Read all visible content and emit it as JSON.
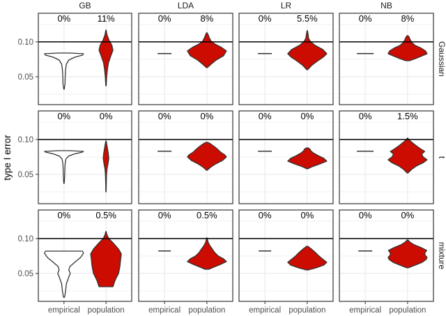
{
  "chart_data": {
    "type": "violin",
    "title": "",
    "ylabel": "type I error",
    "xlabel": "",
    "reference_line": 0.1,
    "ylim": [
      0.01,
      0.141
    ],
    "y_ticks": [
      0.05,
      0.1
    ],
    "y_tick_labels": [
      "0.05",
      "0.10"
    ],
    "minor_gridlines": [
      0.025,
      0.075,
      0.125
    ],
    "grid": true,
    "legend": "none",
    "columns": [
      "GB",
      "LDA",
      "LR",
      "NB"
    ],
    "rows": [
      "Gaussian",
      "t",
      "mixture"
    ],
    "x_categories": [
      "empirical",
      "population"
    ],
    "fill_colors": {
      "empirical": "#ffffff",
      "population": "#cc0c00"
    },
    "outline_color": "#333333",
    "panels": [
      {
        "column": "GB",
        "row": "Gaussian",
        "pct_labels": [
          "0%",
          "11%"
        ],
        "empirical": {
          "min": 0.032,
          "max": 0.084,
          "profile": [
            [
              0.032,
              0.01
            ],
            [
              0.04,
              0.05
            ],
            [
              0.05,
              0.06
            ],
            [
              0.06,
              0.08
            ],
            [
              0.068,
              0.12
            ],
            [
              0.074,
              0.25
            ],
            [
              0.078,
              0.55
            ],
            [
              0.081,
              0.95
            ],
            [
              0.083,
              1.0
            ],
            [
              0.084,
              0.3
            ]
          ]
        },
        "population": {
          "min": 0.037,
          "max": 0.117,
          "profile": [
            [
              0.037,
              0.03
            ],
            [
              0.05,
              0.1
            ],
            [
              0.06,
              0.2
            ],
            [
              0.07,
              0.35
            ],
            [
              0.08,
              0.7
            ],
            [
              0.088,
              1.0
            ],
            [
              0.095,
              0.85
            ],
            [
              0.102,
              0.45
            ],
            [
              0.11,
              0.15
            ],
            [
              0.117,
              0.02
            ]
          ]
        }
      },
      {
        "column": "LDA",
        "row": "Gaussian",
        "pct_labels": [
          "0%",
          "8%"
        ],
        "empirical": {
          "min": 0.0828,
          "max": 0.0836,
          "profile": [
            [
              0.0828,
              1.0
            ],
            [
              0.0836,
              1.0
            ]
          ]
        },
        "population": {
          "min": 0.063,
          "max": 0.113,
          "profile": [
            [
              0.063,
              0.02
            ],
            [
              0.068,
              0.22
            ],
            [
              0.074,
              0.48
            ],
            [
              0.08,
              0.85
            ],
            [
              0.087,
              1.0
            ],
            [
              0.092,
              0.75
            ],
            [
              0.097,
              0.4
            ],
            [
              0.101,
              0.22
            ],
            [
              0.106,
              0.12
            ],
            [
              0.11,
              0.07
            ],
            [
              0.113,
              0.02
            ]
          ]
        }
      },
      {
        "column": "LR",
        "row": "Gaussian",
        "pct_labels": [
          "0%",
          "5.5%"
        ],
        "empirical": {
          "min": 0.0828,
          "max": 0.0836,
          "profile": [
            [
              0.0828,
              1.0
            ],
            [
              0.0836,
              1.0
            ]
          ]
        },
        "population": {
          "min": 0.06,
          "max": 0.116,
          "profile": [
            [
              0.06,
              0.02
            ],
            [
              0.066,
              0.22
            ],
            [
              0.072,
              0.5
            ],
            [
              0.078,
              0.82
            ],
            [
              0.083,
              1.0
            ],
            [
              0.089,
              0.8
            ],
            [
              0.095,
              0.4
            ],
            [
              0.1,
              0.18
            ],
            [
              0.105,
              0.07
            ],
            [
              0.11,
              0.05
            ],
            [
              0.116,
              0.01
            ]
          ]
        }
      },
      {
        "column": "NB",
        "row": "Gaussian",
        "pct_labels": [
          "0%",
          "8%"
        ],
        "empirical": {
          "min": 0.0828,
          "max": 0.0836,
          "profile": [
            [
              0.0828,
              1.0
            ],
            [
              0.0836,
              1.0
            ]
          ]
        },
        "population": {
          "min": 0.073,
          "max": 0.109,
          "profile": [
            [
              0.073,
              0.1
            ],
            [
              0.076,
              0.4
            ],
            [
              0.08,
              0.75
            ],
            [
              0.083,
              1.0
            ],
            [
              0.087,
              0.92
            ],
            [
              0.091,
              0.7
            ],
            [
              0.095,
              0.38
            ],
            [
              0.099,
              0.22
            ],
            [
              0.104,
              0.12
            ],
            [
              0.107,
              0.08
            ],
            [
              0.109,
              0.02
            ]
          ]
        }
      },
      {
        "column": "GB",
        "row": "t",
        "pct_labels": [
          "0%",
          "0%"
        ],
        "empirical": {
          "min": 0.037,
          "max": 0.084,
          "profile": [
            [
              0.037,
              0.01
            ],
            [
              0.045,
              0.03
            ],
            [
              0.055,
              0.04
            ],
            [
              0.063,
              0.05
            ],
            [
              0.068,
              0.07
            ],
            [
              0.072,
              0.1
            ],
            [
              0.076,
              0.22
            ],
            [
              0.079,
              0.5
            ],
            [
              0.082,
              0.95
            ],
            [
              0.083,
              1.0
            ],
            [
              0.084,
              0.3
            ]
          ]
        },
        "population": {
          "min": 0.025,
          "max": 0.098,
          "profile": [
            [
              0.025,
              0.02
            ],
            [
              0.04,
              0.05
            ],
            [
              0.05,
              0.08
            ],
            [
              0.058,
              0.15
            ],
            [
              0.066,
              0.3
            ],
            [
              0.073,
              0.4
            ],
            [
              0.08,
              0.33
            ],
            [
              0.088,
              0.2
            ],
            [
              0.094,
              0.1
            ],
            [
              0.098,
              0.02
            ]
          ]
        }
      },
      {
        "column": "LDA",
        "row": "t",
        "pct_labels": [
          "0%",
          "0%"
        ],
        "empirical": {
          "min": 0.0828,
          "max": 0.0836,
          "profile": [
            [
              0.0828,
              1.0
            ],
            [
              0.0836,
              1.0
            ]
          ]
        },
        "population": {
          "min": 0.056,
          "max": 0.096,
          "profile": [
            [
              0.056,
              0.02
            ],
            [
              0.06,
              0.18
            ],
            [
              0.065,
              0.45
            ],
            [
              0.07,
              0.8
            ],
            [
              0.075,
              1.0
            ],
            [
              0.078,
              0.92
            ],
            [
              0.082,
              0.7
            ],
            [
              0.086,
              0.55
            ],
            [
              0.09,
              0.38
            ],
            [
              0.094,
              0.18
            ],
            [
              0.096,
              0.03
            ]
          ]
        }
      },
      {
        "column": "LR",
        "row": "t",
        "pct_labels": [
          "0%",
          "0%"
        ],
        "empirical": {
          "min": 0.0828,
          "max": 0.0836,
          "profile": [
            [
              0.0828,
              1.0
            ],
            [
              0.0836,
              1.0
            ]
          ]
        },
        "population": {
          "min": 0.058,
          "max": 0.088,
          "profile": [
            [
              0.058,
              0.02
            ],
            [
              0.061,
              0.25
            ],
            [
              0.065,
              0.65
            ],
            [
              0.069,
              1.0
            ],
            [
              0.073,
              0.85
            ],
            [
              0.077,
              0.55
            ],
            [
              0.081,
              0.3
            ],
            [
              0.084,
              0.18
            ],
            [
              0.086,
              0.15
            ],
            [
              0.088,
              0.05
            ]
          ]
        }
      },
      {
        "column": "NB",
        "row": "t",
        "pct_labels": [
          "0%",
          "1.5%"
        ],
        "empirical": {
          "min": 0.0828,
          "max": 0.0836,
          "profile": [
            [
              0.0828,
              1.0
            ],
            [
              0.0836,
              1.0
            ]
          ]
        },
        "population": {
          "min": 0.052,
          "max": 0.102,
          "profile": [
            [
              0.052,
              0.02
            ],
            [
              0.057,
              0.2
            ],
            [
              0.062,
              0.45
            ],
            [
              0.067,
              0.82
            ],
            [
              0.071,
              1.0
            ],
            [
              0.075,
              0.8
            ],
            [
              0.079,
              0.72
            ],
            [
              0.083,
              0.88
            ],
            [
              0.087,
              0.65
            ],
            [
              0.092,
              0.4
            ],
            [
              0.097,
              0.18
            ],
            [
              0.1,
              0.05
            ],
            [
              0.102,
              0.02
            ]
          ]
        }
      },
      {
        "column": "GB",
        "row": "mixture",
        "pct_labels": [
          "0%",
          "0.5%"
        ],
        "empirical": {
          "min": 0.016,
          "max": 0.082,
          "profile": [
            [
              0.016,
              0.03
            ],
            [
              0.025,
              0.08
            ],
            [
              0.035,
              0.12
            ],
            [
              0.043,
              0.22
            ],
            [
              0.05,
              0.32
            ],
            [
              0.055,
              0.25
            ],
            [
              0.06,
              0.3
            ],
            [
              0.066,
              0.55
            ],
            [
              0.073,
              0.85
            ],
            [
              0.079,
              1.0
            ],
            [
              0.082,
              0.95
            ]
          ]
        },
        "population": {
          "min": 0.031,
          "max": 0.11,
          "profile": [
            [
              0.031,
              0.5
            ],
            [
              0.034,
              0.55
            ],
            [
              0.04,
              0.65
            ],
            [
              0.05,
              0.9
            ],
            [
              0.06,
              1.0
            ],
            [
              0.07,
              1.05
            ],
            [
              0.078,
              1.1
            ],
            [
              0.085,
              0.9
            ],
            [
              0.093,
              0.55
            ],
            [
              0.1,
              0.2
            ],
            [
              0.106,
              0.06
            ],
            [
              0.11,
              0.02
            ]
          ]
        }
      },
      {
        "column": "LDA",
        "row": "mixture",
        "pct_labels": [
          "0%",
          "0.5%"
        ],
        "empirical": {
          "min": 0.0818,
          "max": 0.0826,
          "profile": [
            [
              0.0818,
              1.0
            ],
            [
              0.0826,
              1.0
            ]
          ]
        },
        "population": {
          "min": 0.056,
          "max": 0.101,
          "profile": [
            [
              0.056,
              0.1
            ],
            [
              0.059,
              0.35
            ],
            [
              0.063,
              0.7
            ],
            [
              0.067,
              1.0
            ],
            [
              0.071,
              0.85
            ],
            [
              0.075,
              0.58
            ],
            [
              0.08,
              0.4
            ],
            [
              0.085,
              0.28
            ],
            [
              0.09,
              0.15
            ],
            [
              0.095,
              0.06
            ],
            [
              0.101,
              0.01
            ]
          ]
        }
      },
      {
        "column": "LR",
        "row": "mixture",
        "pct_labels": [
          "0%",
          "0%"
        ],
        "empirical": {
          "min": 0.0818,
          "max": 0.0826,
          "profile": [
            [
              0.0818,
              1.0
            ],
            [
              0.0826,
              1.0
            ]
          ]
        },
        "population": {
          "min": 0.055,
          "max": 0.089,
          "profile": [
            [
              0.055,
              0.05
            ],
            [
              0.058,
              0.45
            ],
            [
              0.062,
              0.85
            ],
            [
              0.066,
              1.0
            ],
            [
              0.07,
              0.82
            ],
            [
              0.075,
              0.6
            ],
            [
              0.08,
              0.42
            ],
            [
              0.085,
              0.22
            ],
            [
              0.089,
              0.03
            ]
          ]
        }
      },
      {
        "column": "NB",
        "row": "mixture",
        "pct_labels": [
          "0%",
          "0%"
        ],
        "empirical": {
          "min": 0.0818,
          "max": 0.0826,
          "profile": [
            [
              0.0818,
              1.0
            ],
            [
              0.0826,
              1.0
            ]
          ]
        },
        "population": {
          "min": 0.058,
          "max": 0.098,
          "profile": [
            [
              0.058,
              0.03
            ],
            [
              0.062,
              0.4
            ],
            [
              0.066,
              0.75
            ],
            [
              0.07,
              0.95
            ],
            [
              0.073,
              1.0
            ],
            [
              0.076,
              0.9
            ],
            [
              0.079,
              0.88
            ],
            [
              0.083,
              0.98
            ],
            [
              0.087,
              0.7
            ],
            [
              0.091,
              0.35
            ],
            [
              0.095,
              0.12
            ],
            [
              0.098,
              0.02
            ]
          ]
        }
      }
    ]
  }
}
